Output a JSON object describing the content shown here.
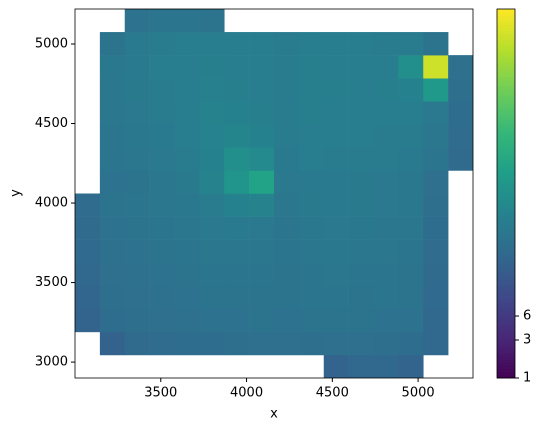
{
  "chart_data": {
    "type": "heatmap",
    "xlabel": "x",
    "ylabel": "y",
    "xlim": [
      3000,
      5320
    ],
    "ylim": [
      2900,
      5220
    ],
    "xticks": [
      3500,
      4000,
      4500,
      5000
    ],
    "yticks": [
      3000,
      3500,
      4000,
      4500,
      5000
    ],
    "xbins": [
      3000,
      3145,
      3290,
      3435,
      3580,
      3725,
      3870,
      4015,
      4160,
      4305,
      4450,
      4595,
      4740,
      4885,
      5030,
      5175,
      5320
    ],
    "ybins": [
      2900,
      3045,
      3190,
      3335,
      3480,
      3625,
      3770,
      3915,
      4060,
      4205,
      4350,
      4495,
      4640,
      4785,
      4930,
      5075,
      5220
    ],
    "colormap": "viridis",
    "color_scale": "log",
    "clim": [
      1,
      43000
    ],
    "cticks": [
      1,
      3,
      6
    ],
    "z": [
      [
        null,
        null,
        null,
        null,
        null,
        null,
        null,
        null,
        null,
        null,
        30,
        35,
        35,
        30,
        null,
        null
      ],
      [
        null,
        28,
        40,
        42,
        45,
        45,
        48,
        50,
        50,
        48,
        50,
        50,
        48,
        45,
        35,
        null
      ],
      [
        30,
        45,
        48,
        50,
        52,
        55,
        55,
        58,
        55,
        58,
        60,
        58,
        55,
        55,
        35,
        null
      ],
      [
        32,
        48,
        50,
        52,
        55,
        58,
        60,
        60,
        58,
        62,
        62,
        60,
        62,
        58,
        38,
        null
      ],
      [
        35,
        50,
        52,
        55,
        58,
        62,
        62,
        65,
        60,
        65,
        68,
        65,
        62,
        60,
        40,
        null
      ],
      [
        38,
        52,
        55,
        58,
        62,
        68,
        70,
        70,
        62,
        70,
        72,
        70,
        68,
        65,
        42,
        null
      ],
      [
        40,
        55,
        58,
        62,
        68,
        75,
        80,
        75,
        65,
        72,
        75,
        72,
        70,
        68,
        45,
        null
      ],
      [
        42,
        58,
        62,
        68,
        72,
        85,
        110,
        120,
        70,
        78,
        80,
        78,
        75,
        72,
        48,
        null
      ],
      [
        null,
        55,
        60,
        68,
        78,
        120,
        250,
        450,
        75,
        80,
        80,
        78,
        75,
        72,
        50,
        null
      ],
      [
        null,
        62,
        68,
        75,
        85,
        110,
        200,
        160,
        80,
        90,
        88,
        85,
        82,
        80,
        62,
        40
      ],
      [
        null,
        65,
        72,
        80,
        90,
        115,
        130,
        110,
        85,
        95,
        92,
        90,
        88,
        85,
        70,
        42
      ],
      [
        null,
        68,
        75,
        85,
        95,
        120,
        110,
        100,
        85,
        98,
        95,
        92,
        95,
        95,
        75,
        45
      ],
      [
        null,
        70,
        78,
        88,
        95,
        105,
        100,
        95,
        85,
        100,
        98,
        95,
        100,
        110,
        300,
        48
      ],
      [
        null,
        72,
        80,
        90,
        95,
        98,
        95,
        92,
        85,
        98,
        95,
        92,
        95,
        200,
        20000,
        50
      ],
      [
        null,
        60,
        80,
        88,
        92,
        95,
        92,
        90,
        85,
        95,
        92,
        90,
        88,
        85,
        60,
        null
      ],
      [
        null,
        null,
        55,
        65,
        62,
        58,
        null,
        null,
        null,
        null,
        null,
        null,
        null,
        null,
        null,
        null
      ]
    ]
  }
}
